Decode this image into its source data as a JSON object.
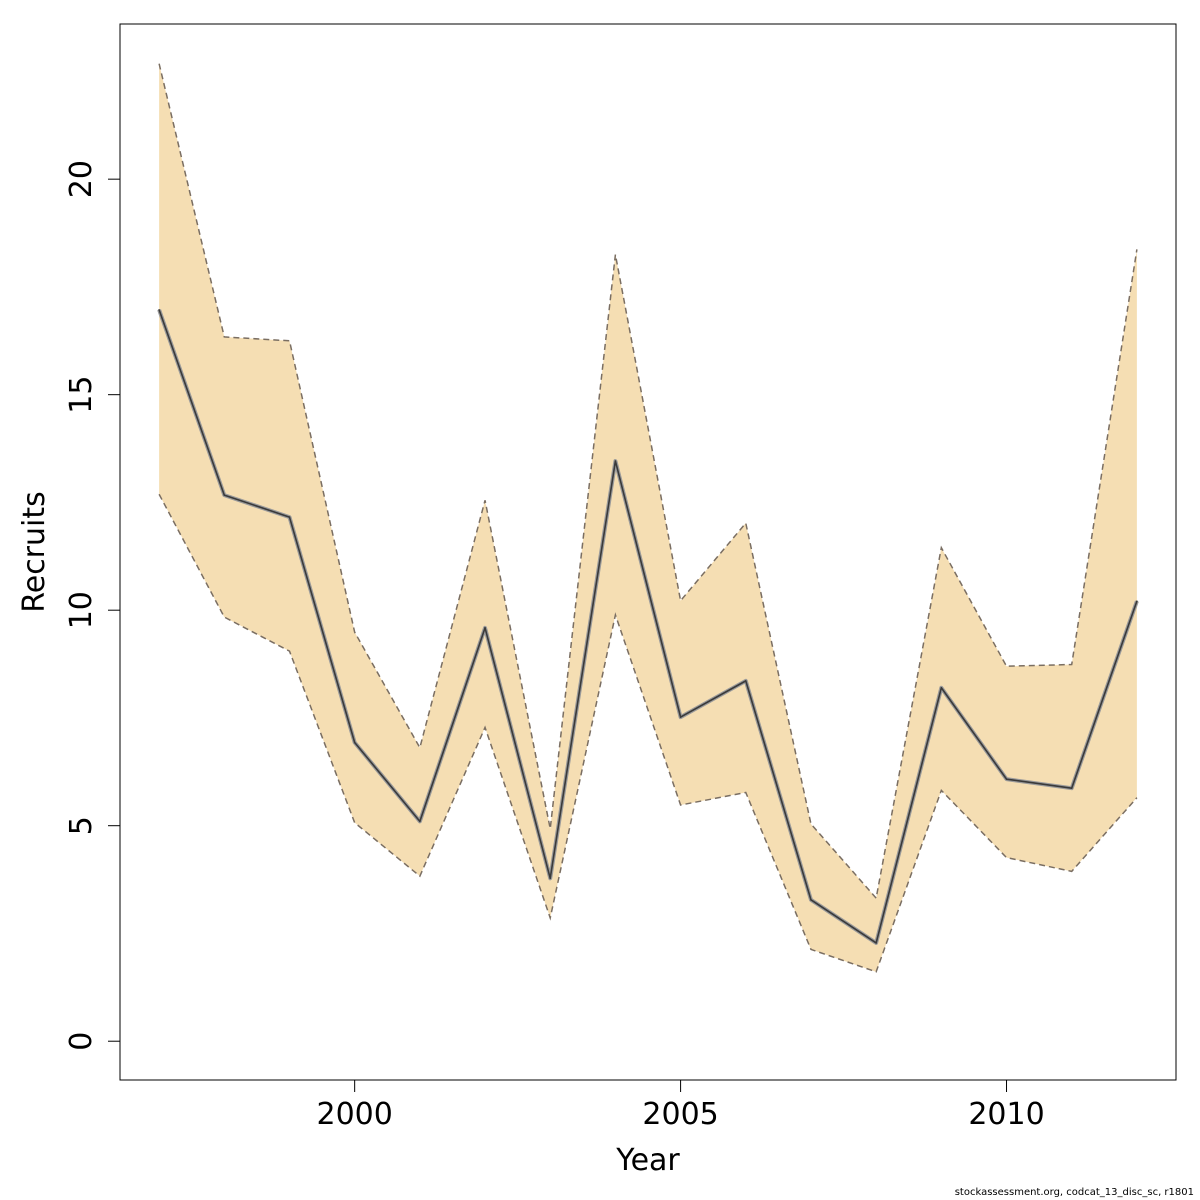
{
  "chart_data": {
    "type": "line",
    "xlabel": "Year",
    "ylabel": "Recruits",
    "xlim": [
      1996.4,
      2012.6
    ],
    "ylim": [
      -0.9,
      23.6
    ],
    "x_ticks": [
      2000,
      2005,
      2010
    ],
    "y_ticks": [
      0,
      5,
      10,
      15,
      20
    ],
    "grid": false,
    "x": [
      1997,
      1998,
      1999,
      2000,
      2001,
      2002,
      2003,
      2004,
      2005,
      2006,
      2007,
      2008,
      2009,
      2010,
      2011,
      2012
    ],
    "series": [
      {
        "role": "estimate",
        "values": [
          16.97,
          12.67,
          12.16,
          6.93,
          5.1,
          9.59,
          3.78,
          13.46,
          7.52,
          8.36,
          3.28,
          2.28,
          8.2,
          6.08,
          5.87,
          10.21
        ]
      },
      {
        "role": "upper",
        "values": [
          22.68,
          16.34,
          16.25,
          9.49,
          6.81,
          12.55,
          4.93,
          18.25,
          10.22,
          12.02,
          5.04,
          3.32,
          11.45,
          8.7,
          8.74,
          18.37
        ]
      },
      {
        "role": "lower",
        "values": [
          12.69,
          9.84,
          9.05,
          5.07,
          3.83,
          7.28,
          2.86,
          9.89,
          5.48,
          5.77,
          2.13,
          1.61,
          5.82,
          4.26,
          3.94,
          5.65
        ]
      }
    ],
    "colors": {
      "band_fill": "#f5deb3",
      "band_edge": "#7a6e62",
      "line": "#3a3a3a",
      "line_halo": "#9a9a9a"
    }
  },
  "footer_text": "stockassessment.org, codcat_13_disc_sc, r1801"
}
